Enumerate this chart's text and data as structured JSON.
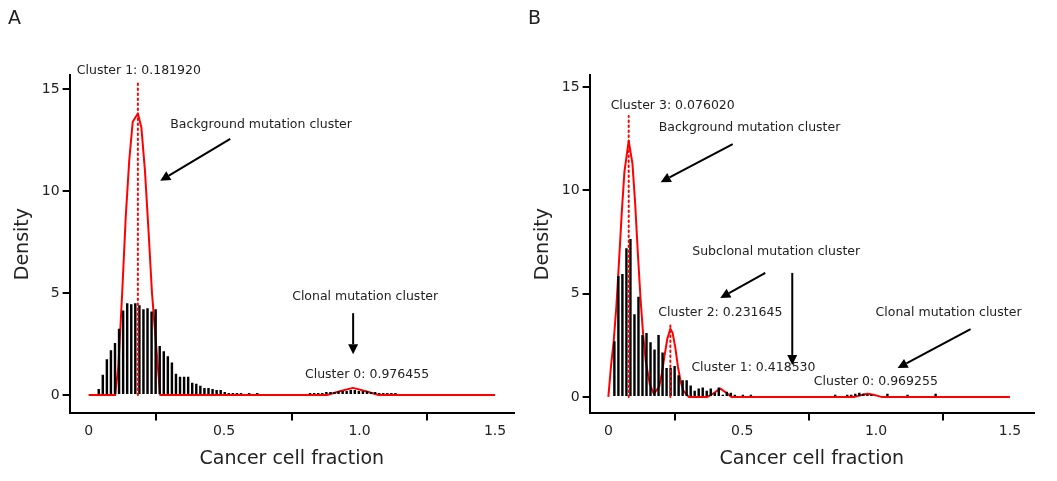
{
  "chart_data": [
    {
      "type": "histogram",
      "title": "A",
      "xlabel": "Cancer cell fraction",
      "ylabel": "Density",
      "color": "#000000",
      "bins": [
        0.03,
        0.045,
        0.06,
        0.075,
        0.09,
        0.105,
        0.12,
        0.135,
        0.15,
        0.165,
        0.18,
        0.195,
        0.21,
        0.225,
        0.24,
        0.255,
        0.27,
        0.285,
        0.3,
        0.315,
        0.33,
        0.345,
        0.36,
        0.375,
        0.39,
        0.405,
        0.42,
        0.435,
        0.45,
        0.465,
        0.48,
        0.495,
        0.51,
        0.525,
        0.54,
        0.555,
        0.57,
        0.585,
        0.6,
        0.615,
        0.63,
        0.645,
        0.66,
        0.675,
        0.69,
        0.705,
        0.72,
        0.735,
        0.75,
        0.765,
        0.78,
        0.795,
        0.81,
        0.825,
        0.84,
        0.855,
        0.87,
        0.885,
        0.9,
        0.915,
        0.93,
        0.945,
        0.96,
        0.975,
        0.99,
        1.005,
        1.02,
        1.035,
        1.05,
        1.065,
        1.08,
        1.095,
        1.11,
        1.125,
        1.14,
        1.155,
        1.17,
        1.185,
        1.2,
        1.215,
        1.23,
        1.245,
        1.26,
        1.275,
        1.29,
        1.305,
        1.32,
        1.335,
        1.35,
        1.365,
        1.38,
        1.395,
        1.41,
        1.425,
        1.44,
        1.455,
        1.47,
        1.485,
        1.5
      ],
      "values": [
        0.3,
        1.0,
        1.75,
        2.2,
        2.55,
        3.25,
        4.15,
        4.5,
        4.45,
        4.5,
        4.4,
        4.2,
        4.25,
        4.1,
        4.2,
        2.4,
        2.15,
        1.9,
        1.6,
        1.05,
        0.9,
        0.9,
        0.9,
        0.6,
        0.55,
        0.45,
        0.35,
        0.35,
        0.3,
        0.25,
        0.25,
        0.15,
        0.1,
        0.1,
        0.1,
        0.1,
        0.05,
        0.1,
        0.05,
        0.1,
        0.05,
        0.05,
        0.05,
        0.05,
        0.05,
        0.05,
        0.05,
        0.05,
        0.05,
        0.05,
        0.05,
        0.05,
        0.1,
        0.1,
        0.1,
        0.1,
        0.15,
        0.15,
        0.15,
        0.2,
        0.2,
        0.2,
        0.25,
        0.25,
        0.2,
        0.2,
        0.2,
        0.15,
        0.15,
        0.1,
        0.1,
        0.1,
        0.1,
        0.1,
        0.05,
        0.05,
        0.05,
        0.05,
        0.05,
        0.05,
        0.05,
        0.05,
        0.05,
        0.05,
        0.05,
        0.05,
        0.05,
        0.05,
        0.05,
        0.05,
        0.05,
        0.05,
        0.05,
        0.05,
        0.05,
        0.05,
        0.05,
        0.05
      ],
      "series": [
        {
          "type": "line",
          "color": "#ff0000",
          "x": [
            0,
            0.08,
            0.098,
            0.11,
            0.124,
            0.137,
            0.15,
            0.163,
            0.182,
            0.195,
            0.208,
            0.221,
            0.234,
            0.264,
            0.3,
            0.85,
            0.88,
            0.93,
            0.976,
            1.02,
            1.07,
            1.1,
            1.5
          ],
          "values": [
            0,
            0,
            0,
            1.4,
            5,
            8.7,
            11.5,
            13.4,
            13.8,
            13.1,
            11,
            8.1,
            5,
            0,
            0,
            0,
            0,
            0.2,
            0.35,
            0.2,
            0,
            0,
            0
          ]
        }
      ],
      "ref_lines": [
        {
          "axis": "x",
          "value": 0.18192,
          "label": "Cluster 1: 0.181920",
          "color": "#ff0000",
          "line_style": "dotted"
        }
      ],
      "annotations": [
        "Background mutation cluster",
        "Clonal mutation cluster",
        {
          "text": "Cluster 0: 0.976455",
          "x": 0.976,
          "y": 0.35
        }
      ],
      "xlim": [
        -0.07,
        1.57
      ],
      "ylim": [
        -0.9,
        15.7
      ],
      "xticks": [
        0,
        0.5,
        {
          "value": 1,
          "label": "1.0"
        },
        1.5
      ],
      "yticks": [
        0,
        5,
        10,
        15
      ],
      "grid": false,
      "legend": false
    },
    {
      "type": "histogram",
      "title": "B",
      "xlabel": "Cancer cell fraction",
      "ylabel": "Density",
      "color": "#000000",
      "bins": [
        0.015,
        0.03,
        0.045,
        0.06,
        0.075,
        0.09,
        0.105,
        0.12,
        0.135,
        0.15,
        0.165,
        0.18,
        0.195,
        0.21,
        0.225,
        0.24,
        0.255,
        0.27,
        0.285,
        0.3,
        0.315,
        0.33,
        0.345,
        0.36,
        0.375,
        0.39,
        0.405,
        0.42,
        0.435,
        0.45,
        0.465,
        0.48,
        0.495,
        0.51,
        0.525,
        0.54,
        0.555,
        0.57,
        0.585,
        0.6,
        0.615,
        0.63,
        0.645,
        0.66,
        0.675,
        0.69,
        0.705,
        0.72,
        0.735,
        0.75,
        0.765,
        0.78,
        0.795,
        0.81,
        0.825,
        0.84,
        0.855,
        0.87,
        0.885,
        0.9,
        0.915,
        0.93,
        0.945,
        0.96,
        0.975,
        0.99,
        1.005,
        1.02,
        1.035,
        1.05,
        1.065,
        1.08,
        1.095,
        1.11,
        1.125,
        1.14,
        1.155,
        1.17,
        1.185,
        1.2,
        1.215,
        1.23
      ],
      "values": [
        2.7,
        5.85,
        5.95,
        7.2,
        7.65,
        4.0,
        4.85,
        3.0,
        3.1,
        2.65,
        2.3,
        3.0,
        2.15,
        1.4,
        1.4,
        1.5,
        1.05,
        0.8,
        0.8,
        0.55,
        0.3,
        0.4,
        0.45,
        0.3,
        0.4,
        0.2,
        0.45,
        0.1,
        0.25,
        0.2,
        0.1,
        null,
        0.1,
        0,
        0.1,
        0,
        0,
        0,
        null,
        0,
        0,
        0,
        0,
        0,
        0,
        0,
        0,
        0,
        0,
        0,
        0,
        0,
        0,
        0,
        0,
        0.1,
        0,
        0,
        0.1,
        0.1,
        0.15,
        0.2,
        0.15,
        0.1,
        0.1,
        null,
        0,
        0,
        0.15,
        0,
        0,
        0,
        0,
        0.1,
        0,
        0,
        0,
        0,
        0,
        0,
        0.15
      ],
      "series": [
        {
          "type": "line",
          "color": "#ff0000",
          "x": [
            0,
            0.01,
            0.02,
            0.03,
            0.04,
            0.05,
            0.06,
            0.076,
            0.09,
            0.1,
            0.11,
            0.12,
            0.13,
            0.14,
            0.155,
            0.17,
            0.19,
            0.2,
            0.21,
            0.22,
            0.2316,
            0.24,
            0.25,
            0.26,
            0.27,
            0.28,
            0.3,
            0.37,
            0.39,
            0.4185,
            0.44,
            0.46,
            0.48,
            0.92,
            0.95,
            0.969,
            0.99,
            1.02,
            1.5
          ],
          "values": [
            0,
            1.5,
            2.7,
            4.4,
            6.6,
            8.9,
            10.9,
            12.4,
            11.3,
            9.4,
            7.0,
            4.8,
            3.0,
            1.7,
            0.6,
            0.15,
            0.5,
            1.15,
            2.0,
            2.8,
            3.3,
            3.1,
            2.4,
            1.45,
            0.75,
            0.3,
            0,
            0,
            0.15,
            0.4,
            0.2,
            0,
            0,
            0,
            0.1,
            0.15,
            0.1,
            0,
            0
          ]
        }
      ],
      "ref_lines": [
        {
          "axis": "x",
          "value": 0.07602,
          "label": "Cluster 3: 0.076020",
          "color": "#ff0000",
          "line_style": "dotted"
        },
        {
          "axis": "x",
          "value": 0.231645,
          "label": "Cluster 2: 0.231645",
          "color": "#ff0000",
          "line_style": "dotted"
        }
      ],
      "annotations": [
        "Background mutation cluster",
        "Subclonal mutation cluster",
        {
          "text": "Cluster 1: 0.418530",
          "x": 0.4185,
          "y": 0.4
        },
        "Clonal mutation cluster",
        {
          "text": "Cluster 0: 0.969255",
          "x": 0.969,
          "y": 0.15
        }
      ],
      "xlim": [
        -0.07,
        1.59
      ],
      "ylim": [
        -0.8,
        15.6
      ],
      "xticks": [
        0,
        0.5,
        {
          "value": 1,
          "label": "1.0"
        },
        1.5
      ],
      "yticks": [
        0,
        5,
        10,
        15
      ],
      "grid": false,
      "legend": false
    }
  ]
}
